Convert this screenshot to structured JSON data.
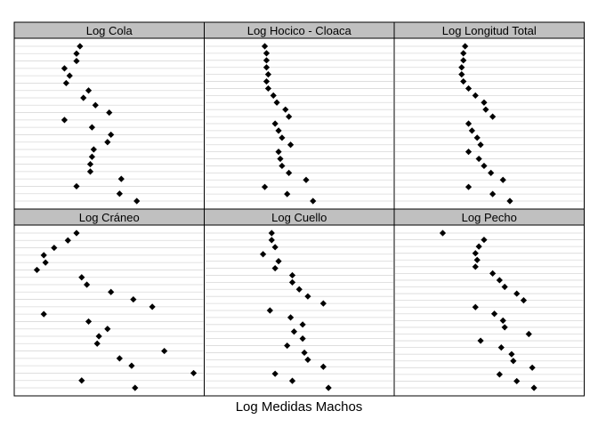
{
  "chart_data": {
    "type": "scatter",
    "title": "",
    "xlabel": "Log Medidas Machos",
    "ylabel": "",
    "grid": true,
    "layout": "2 rows x 3 panels (dot plot)",
    "panels": [
      {
        "name": "Log Cola",
        "values": [
          0.33,
          0.31,
          0.31,
          0.24,
          0.27,
          0.25,
          0.38,
          0.35,
          0.42,
          0.5,
          0.24,
          0.4,
          0.51,
          0.49,
          0.41,
          0.4,
          0.39,
          0.39,
          0.57,
          0.31,
          0.56,
          0.66
        ],
        "marker_color": "#000000"
      },
      {
        "name": "Log Hocico - Cloaca",
        "values": [
          0.3,
          0.31,
          0.31,
          0.31,
          0.32,
          0.31,
          0.32,
          0.35,
          0.37,
          0.42,
          0.44,
          0.36,
          0.38,
          0.4,
          0.45,
          0.38,
          0.39,
          0.4,
          0.44,
          0.54,
          0.3,
          0.43,
          0.58
        ],
        "marker_color": "#000000"
      },
      {
        "name": "Log Longitud Total",
        "values": [
          0.36,
          0.35,
          0.35,
          0.34,
          0.34,
          0.35,
          0.38,
          0.42,
          0.47,
          0.48,
          0.52,
          0.38,
          0.4,
          0.43,
          0.45,
          0.38,
          0.44,
          0.47,
          0.51,
          0.58,
          0.38,
          0.52,
          0.62
        ],
        "marker_color": "#000000"
      },
      {
        "name": "Log Cráneo",
        "values": [
          0.31,
          0.26,
          0.18,
          0.12,
          0.13,
          0.08,
          0.34,
          0.37,
          0.51,
          0.64,
          0.75,
          0.12,
          0.38,
          0.49,
          0.44,
          0.43,
          0.82,
          0.56,
          0.63,
          0.99,
          0.34,
          0.65
        ],
        "marker_color": "#000000"
      },
      {
        "name": "Log Cuello",
        "values": [
          0.34,
          0.34,
          0.36,
          0.29,
          0.38,
          0.36,
          0.46,
          0.46,
          0.5,
          0.55,
          0.64,
          0.33,
          0.45,
          0.52,
          0.47,
          0.52,
          0.43,
          0.53,
          0.55,
          0.64,
          0.36,
          0.46,
          0.67
        ],
        "marker_color": "#000000"
      },
      {
        "name": "Log Pecho",
        "values": [
          0.23,
          0.47,
          0.44,
          0.42,
          0.43,
          0.42,
          0.52,
          0.56,
          0.59,
          0.66,
          0.7,
          0.42,
          0.53,
          0.58,
          0.59,
          0.73,
          0.45,
          0.57,
          0.63,
          0.64,
          0.75,
          0.56,
          0.66,
          0.76
        ],
        "marker_color": "#000000"
      }
    ],
    "colors": {
      "strip": "#c0c0c0",
      "grid": "#d9d9d9",
      "border": "#000000",
      "marker": "#000000"
    }
  }
}
